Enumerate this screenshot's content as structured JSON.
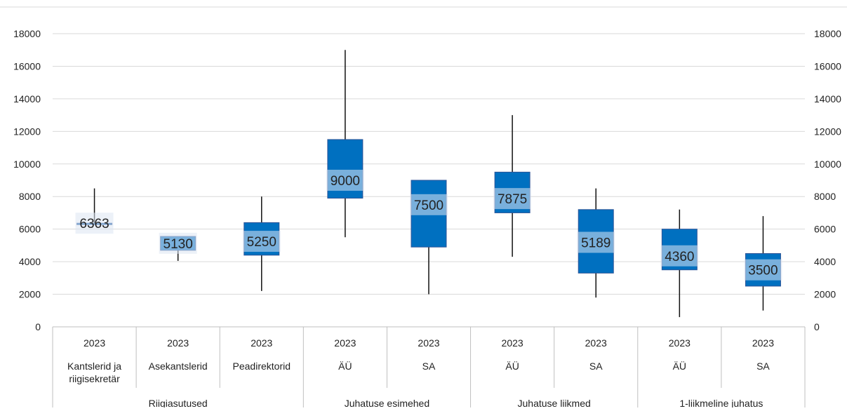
{
  "chart_data": {
    "type": "boxplot",
    "y_axis": {
      "range": [
        0,
        18000
      ],
      "ticks": [
        "0",
        "2000",
        "4000",
        "6000",
        "8000",
        "10000",
        "12000",
        "14000",
        "16000",
        "18000"
      ],
      "secondary_axis_right": true
    },
    "grid": true,
    "categories": [
      {
        "year": "2023",
        "label": "Kantslerid ja riigisekretär",
        "label_lines": [
          "Kantslerid ja",
          "riigisekretär"
        ],
        "min": 6363,
        "q1": 6363,
        "median": 6363,
        "q3": 6363,
        "max": 8500,
        "label_value": "6363"
      },
      {
        "year": "2023",
        "label": "Asekantslerid",
        "label_lines": [
          "Asekantslerid"
        ],
        "min": 4050,
        "q1": 4700,
        "median": 5130,
        "q3": 5550,
        "max": 5550,
        "label_value": "5130"
      },
      {
        "year": "2023",
        "label": "Peadirektorid",
        "label_lines": [
          "Peadirektorid"
        ],
        "min": 2200,
        "q1": 4400,
        "median": 5250,
        "q3": 6400,
        "max": 8000,
        "label_value": "5250"
      },
      {
        "year": "2023",
        "label": "ÄÜ",
        "label_lines": [
          "ÄÜ"
        ],
        "min": 5500,
        "q1": 7900,
        "median": 9000,
        "q3": 11500,
        "max": 17000,
        "label_value": "9000"
      },
      {
        "year": "2023",
        "label": "SA",
        "label_lines": [
          "SA"
        ],
        "min": 2000,
        "q1": 4900,
        "median": 7500,
        "q3": 9000,
        "max": 9000,
        "label_value": "7500"
      },
      {
        "year": "2023",
        "label": "ÄÜ",
        "label_lines": [
          "ÄÜ"
        ],
        "min": 4300,
        "q1": 7000,
        "median": 7875,
        "q3": 9500,
        "max": 13000,
        "label_value": "7875"
      },
      {
        "year": "2023",
        "label": "SA",
        "label_lines": [
          "SA"
        ],
        "min": 1800,
        "q1": 3300,
        "median": 5189,
        "q3": 7200,
        "max": 8500,
        "label_value": "5189"
      },
      {
        "year": "2023",
        "label": "ÄÜ",
        "label_lines": [
          "ÄÜ"
        ],
        "min": 600,
        "q1": 3500,
        "median": 4360,
        "q3": 6000,
        "max": 7200,
        "label_value": "4360"
      },
      {
        "year": "2023",
        "label": "SA",
        "label_lines": [
          "SA"
        ],
        "min": 1000,
        "q1": 2500,
        "median": 3500,
        "q3": 4500,
        "max": 6800,
        "label_value": "3500"
      }
    ],
    "groups": [
      {
        "label": "Riigiasutused",
        "span": 3
      },
      {
        "label": "Juhatuse esimehed",
        "span": 2
      },
      {
        "label": "Juhatuse liikmed",
        "span": 2
      },
      {
        "label": "1-liikmeline juhatus",
        "span": 2
      }
    ],
    "colors": {
      "box_fill": "#0070c0",
      "box_stroke": "#2f5597",
      "whisker": "#111111",
      "grid": "#d9d9d9",
      "axis": "#bfbfbf",
      "label_bg": "#dce6f2"
    }
  }
}
